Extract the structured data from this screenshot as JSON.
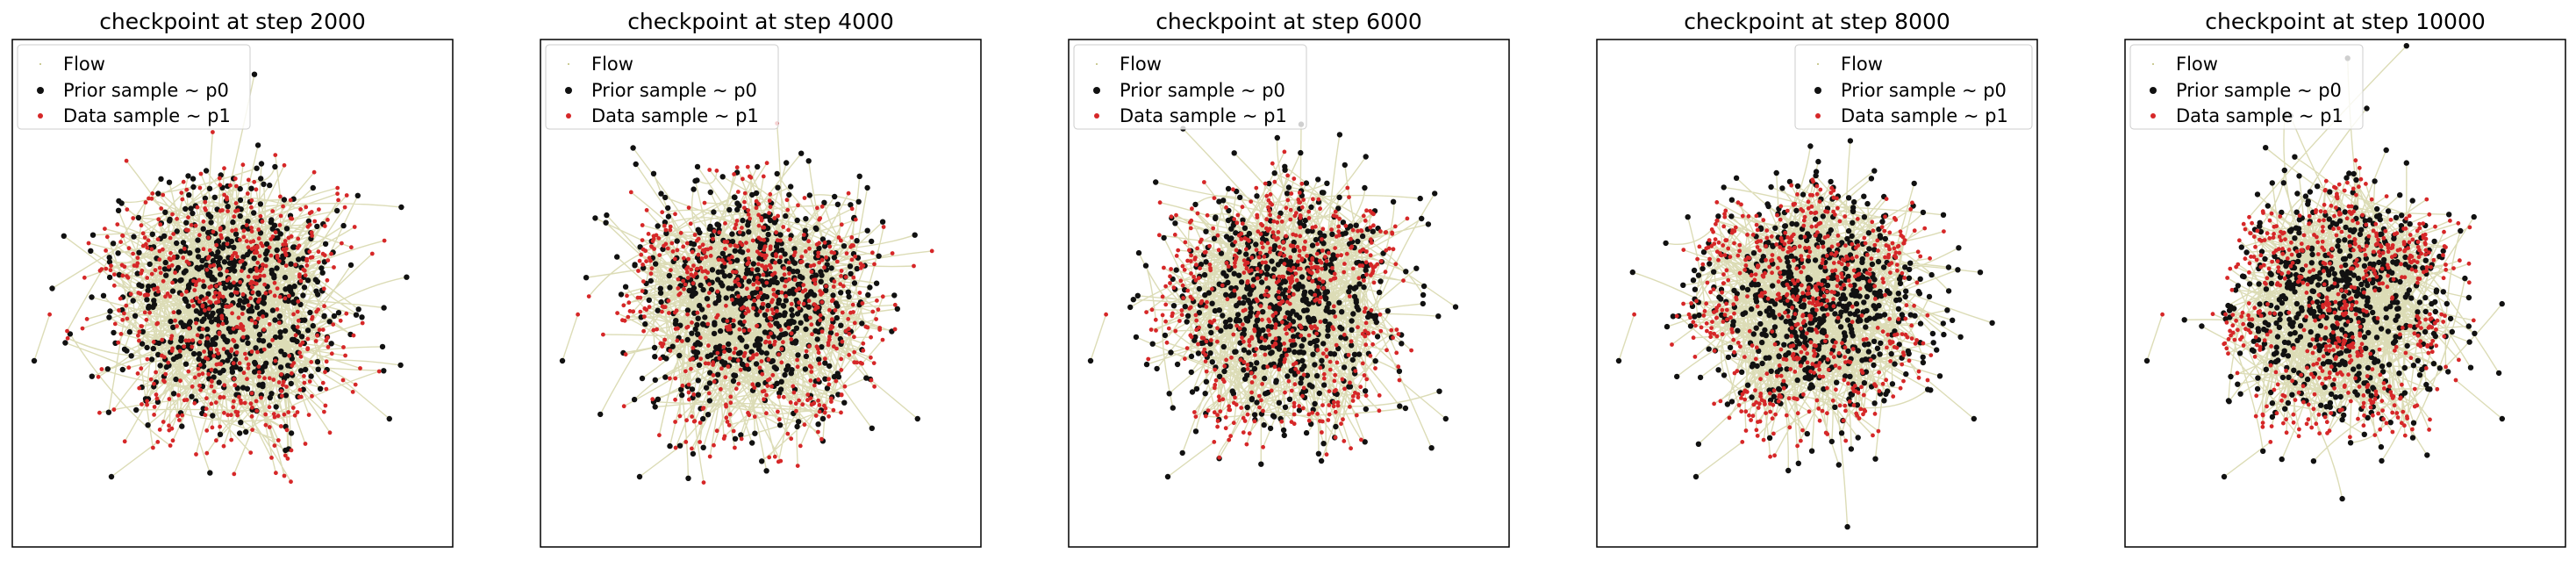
{
  "figure": {
    "panel_titles": [
      "checkpoint at step 2000",
      "checkpoint at step 4000",
      "checkpoint at step 6000",
      "checkpoint at step 8000",
      "checkpoint at step 10000"
    ],
    "legend_labels": {
      "flow": "Flow",
      "prior": "Prior sample ~ p0",
      "data": "Data sample ~ p1"
    },
    "colors": {
      "flow": "#9a9a2e",
      "prior": "#111111",
      "data": "#d62728",
      "axes_frame": "#000000"
    },
    "legend_positions": [
      "upper-left",
      "upper-left",
      "upper-left",
      "upper-right",
      "upper-left"
    ]
  },
  "chart_data": [
    {
      "type": "scatter",
      "title": "checkpoint at step 2000",
      "xlabel": "",
      "ylabel": "",
      "axes_ticks": "hidden",
      "legend": "top-left",
      "series": [
        {
          "name": "Flow",
          "kind": "trajectories",
          "color": "#9a9a2e"
        },
        {
          "name": "Prior sample ~ p0",
          "color": "#111111",
          "distribution": "gaussian blob centered near (0, 0), spread ~3"
        },
        {
          "name": "Data sample ~ p1",
          "color": "#d62728",
          "distribution": "clusters arranged around a ring (lobes at left, right, top, bottom)"
        }
      ]
    },
    {
      "type": "scatter",
      "title": "checkpoint at step 4000",
      "xlabel": "",
      "ylabel": "",
      "axes_ticks": "hidden",
      "legend": "top-left",
      "series": [
        {
          "name": "Flow",
          "kind": "trajectories",
          "color": "#9a9a2e"
        },
        {
          "name": "Prior sample ~ p0",
          "color": "#111111"
        },
        {
          "name": "Data sample ~ p1",
          "color": "#d62728"
        }
      ]
    },
    {
      "type": "scatter",
      "title": "checkpoint at step 6000",
      "xlabel": "",
      "ylabel": "",
      "axes_ticks": "hidden",
      "legend": "top-left",
      "series": [
        {
          "name": "Flow",
          "kind": "trajectories",
          "color": "#9a9a2e"
        },
        {
          "name": "Prior sample ~ p0",
          "color": "#111111"
        },
        {
          "name": "Data sample ~ p1",
          "color": "#d62728"
        }
      ]
    },
    {
      "type": "scatter",
      "title": "checkpoint at step 8000",
      "xlabel": "",
      "ylabel": "",
      "axes_ticks": "hidden",
      "legend": "top-right",
      "series": [
        {
          "name": "Flow",
          "kind": "trajectories",
          "color": "#9a9a2e"
        },
        {
          "name": "Prior sample ~ p0",
          "color": "#111111"
        },
        {
          "name": "Data sample ~ p1",
          "color": "#d62728"
        }
      ]
    },
    {
      "type": "scatter",
      "title": "checkpoint at step 10000",
      "xlabel": "",
      "ylabel": "",
      "axes_ticks": "hidden",
      "legend": "top-left",
      "series": [
        {
          "name": "Flow",
          "kind": "trajectories",
          "color": "#9a9a2e"
        },
        {
          "name": "Prior sample ~ p0",
          "color": "#111111"
        },
        {
          "name": "Data sample ~ p1",
          "color": "#d62728"
        }
      ]
    }
  ]
}
